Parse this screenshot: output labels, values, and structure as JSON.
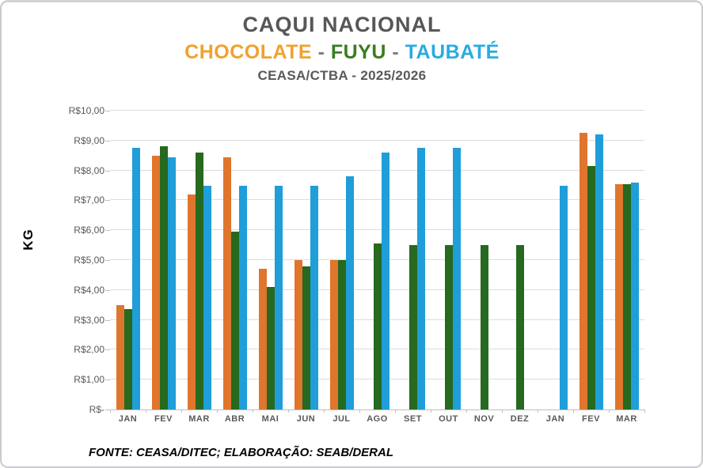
{
  "header": {
    "title": "CAQUI NACIONAL",
    "subtitle_segments": [
      {
        "text": "CHOCOLATE",
        "color": "#F1A12C"
      },
      {
        "text": " - ",
        "color": "#7F7F7F"
      },
      {
        "text": "FUYU",
        "color": "#3A7D21"
      },
      {
        "text": " - ",
        "color": "#7F7F7F"
      },
      {
        "text": "TAUBATÉ",
        "color": "#29ABE2"
      }
    ],
    "subtitle2": "CEASA/CTBA - 2025/2026"
  },
  "chart_data": {
    "type": "bar",
    "categories": [
      "JAN",
      "FEV",
      "MAR",
      "ABR",
      "MAI",
      "JUN",
      "JUL",
      "AGO",
      "SET",
      "OUT",
      "NOV",
      "DEZ",
      "JAN",
      "FEV",
      "MAR"
    ],
    "series": [
      {
        "name": "CHOCOLATE",
        "color": "#E0752D",
        "values": [
          3.5,
          8.5,
          7.2,
          8.45,
          4.7,
          5.0,
          5.0,
          null,
          null,
          null,
          null,
          null,
          null,
          9.25,
          7.55
        ]
      },
      {
        "name": "FUYU",
        "color": "#26691F",
        "values": [
          3.35,
          8.8,
          8.6,
          5.95,
          4.1,
          4.8,
          5.0,
          5.55,
          5.5,
          5.5,
          5.5,
          5.5,
          null,
          8.15,
          7.55
        ]
      },
      {
        "name": "TAUBATÉ",
        "color": "#1F9ED9",
        "values": [
          8.75,
          8.45,
          7.5,
          7.5,
          7.5,
          7.5,
          7.8,
          8.6,
          8.75,
          8.75,
          null,
          null,
          7.5,
          9.2,
          7.6
        ]
      }
    ],
    "ylabel": "KG",
    "xlabel": "",
    "y_ticks": [
      "R$10,00",
      "R$9,00",
      "R$8,00",
      "R$7,00",
      "R$6,00",
      "R$5,00",
      "R$4,00",
      "R$3,00",
      "R$2,00",
      "R$1,00",
      "R$-"
    ],
    "ylim": [
      0,
      10
    ],
    "grid": true,
    "legend_position": "in-title"
  },
  "footer": {
    "source": "FONTE: CEASA/DITEC; ELABORAÇÃO: SEAB/DERAL"
  },
  "colors": {
    "grid": "#DCDCDC",
    "axis": "#BFBFBF",
    "title_gray": "#575757",
    "tick_label_gray": "#595959"
  }
}
